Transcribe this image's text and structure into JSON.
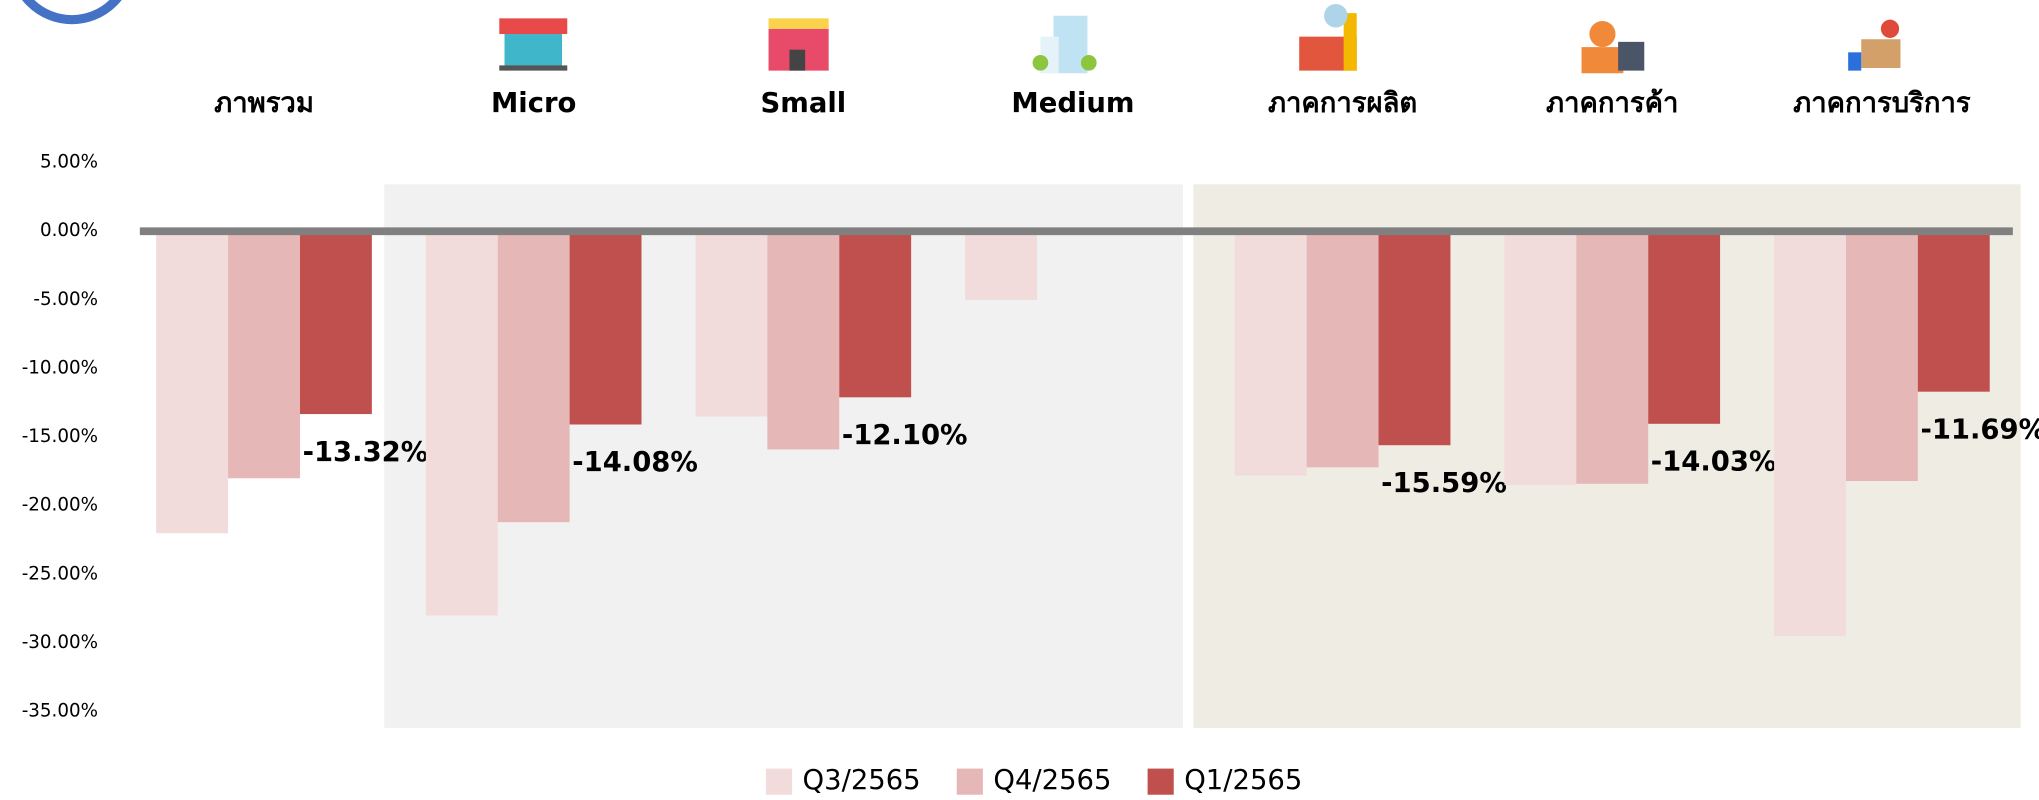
{
  "chart_data": {
    "type": "bar",
    "categories": [
      "ภาพรวม",
      "Micro",
      "Small",
      "Medium",
      "ภาคการผลิต",
      "ภาคการค้า",
      "ภาคการบริการ"
    ],
    "series": [
      {
        "name": "Q3/2565",
        "color": "#f2dbdb",
        "values": [
          -22.0,
          -28.0,
          -13.5,
          -5.0,
          -17.8,
          -18.5,
          -29.5
        ]
      },
      {
        "name": "Q4/2565",
        "color": "#e6b7b7",
        "values": [
          -18.0,
          -21.2,
          -15.9,
          null,
          -17.2,
          -18.4,
          -18.2
        ]
      },
      {
        "name": "Q1/2565",
        "color": "#c0504d",
        "values": [
          -13.32,
          -14.08,
          -12.1,
          null,
          -15.59,
          -14.03,
          -11.69
        ],
        "value_labels": [
          "-13.32%",
          "-14.08%",
          "-12.10%",
          null,
          "-15.59%",
          "-14.03%",
          "-11.69%"
        ]
      }
    ],
    "ylim": [
      -36.2,
      5
    ],
    "yticks": [
      {
        "value": 5,
        "label": "5.00%"
      },
      {
        "value": 0,
        "label": "0.00%"
      },
      {
        "value": -5,
        "label": "-5.00%"
      },
      {
        "value": -10,
        "label": "-10.00%"
      },
      {
        "value": -15,
        "label": "-15.00%"
      },
      {
        "value": -20,
        "label": "-20.00%"
      },
      {
        "value": -25,
        "label": "-25.00%"
      },
      {
        "value": -30,
        "label": "-30.00%"
      },
      {
        "value": -35,
        "label": "-35.00%"
      }
    ],
    "grid": false,
    "legend": "bottom"
  }
}
